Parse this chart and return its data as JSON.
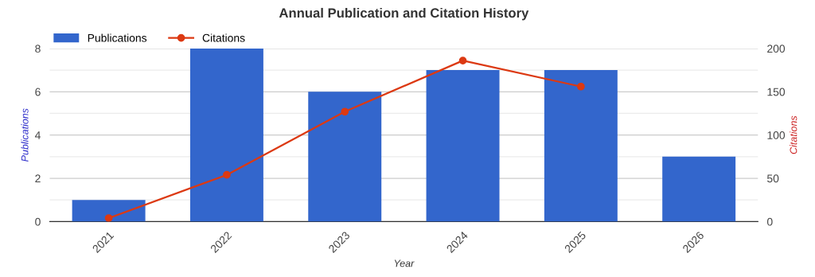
{
  "chart_data": {
    "type": "bar",
    "title": "Annual Publication and Citation History",
    "xlabel": "Year",
    "ylabel": "Publications",
    "y2label": "Citations",
    "categories": [
      "2021",
      "2022",
      "2023",
      "2024",
      "2025",
      "2026"
    ],
    "series": [
      {
        "name": "Publications",
        "color": "#3366cc",
        "values": [
          1,
          8,
          6,
          7,
          7,
          3
        ]
      },
      {
        "name": "Citations",
        "type": "line",
        "axis": "y2",
        "color": "#dc3912",
        "marker": "circle",
        "values": [
          4,
          54,
          127,
          186,
          156,
          null
        ]
      }
    ],
    "ylim": [
      0,
      8
    ],
    "yticks": [
      0,
      {
        "value": 1,
        "label": null
      },
      2,
      {
        "value": 3,
        "label": null
      },
      4,
      {
        "value": 5,
        "label": null
      },
      6,
      {
        "value": 7,
        "label": null
      },
      8
    ],
    "y2lim": [
      0,
      200
    ],
    "y2ticks": [
      0,
      50,
      100,
      150,
      200
    ],
    "grid": "y",
    "legend": "top left"
  }
}
